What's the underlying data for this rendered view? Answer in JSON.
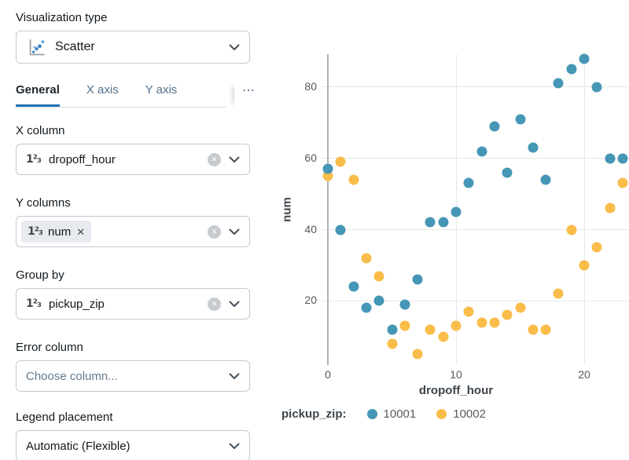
{
  "panel": {
    "viz_type": {
      "label": "Visualization type",
      "value": "Scatter"
    },
    "tabs": {
      "items": [
        {
          "label": "General",
          "active": true
        },
        {
          "label": "X axis",
          "active": false
        },
        {
          "label": "Y axis",
          "active": false
        }
      ],
      "more": "⋯"
    },
    "x_column": {
      "label": "X column",
      "value": "dropoff_hour"
    },
    "y_columns": {
      "label": "Y columns",
      "chip": "num"
    },
    "group_by": {
      "label": "Group by",
      "value": "pickup_zip"
    },
    "error_column": {
      "label": "Error column",
      "placeholder": "Choose column..."
    },
    "legend_placement": {
      "label": "Legend placement",
      "value": "Automatic (Flexible)"
    }
  },
  "chart_data": {
    "type": "scatter",
    "xlabel": "dropoff_hour",
    "ylabel": "num",
    "legend_title": "pickup_zip:",
    "legend_position": "bottom",
    "grid": true,
    "x_ticks": [
      0,
      10,
      20
    ],
    "y_ticks": [
      20,
      40,
      60,
      80
    ],
    "xlim": [
      -1,
      24
    ],
    "ylim": [
      0,
      90
    ],
    "x": [
      0,
      1,
      2,
      3,
      4,
      5,
      6,
      7,
      8,
      9,
      10,
      11,
      12,
      13,
      14,
      15,
      16,
      17,
      18,
      19,
      20,
      21,
      22,
      23
    ],
    "series": [
      {
        "name": "10001",
        "color": "#4696b6",
        "values": [
          57,
          40,
          24,
          18,
          20,
          12,
          19,
          26,
          42,
          42,
          45,
          53,
          62,
          69,
          56,
          71,
          63,
          54,
          81,
          85,
          88,
          80,
          60,
          60
        ]
      },
      {
        "name": "10002",
        "color": "#fabd4a",
        "values": [
          55,
          59,
          54,
          32,
          27,
          8,
          13,
          5,
          12,
          10,
          13,
          17,
          14,
          14,
          16,
          18,
          12,
          12,
          22,
          40,
          30,
          35,
          46,
          53
        ]
      }
    ]
  }
}
